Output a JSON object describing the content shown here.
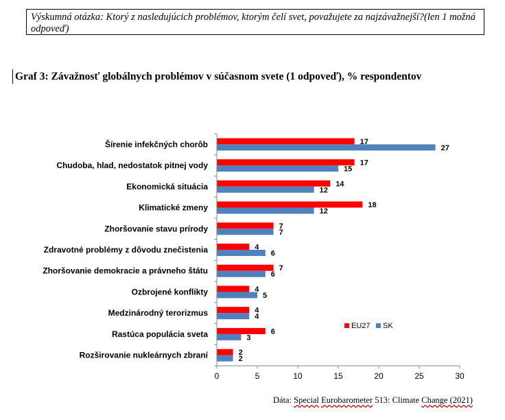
{
  "question": {
    "text": "Výskumná otázka: Ktorý z nasledujúcich problémov, ktorým čelí svet, považujete za najzávažnejší?(len 1 možná odpoveď)"
  },
  "chart_data": {
    "type": "bar",
    "orientation": "horizontal",
    "title": "Graf 3: Závažnosť globálnych problémov v súčasnom svete (1 odpoveď), % respondentov",
    "categories": [
      "Šírenie infekčných chorôb",
      "Chudoba, hlad, nedostatok pitnej vody",
      "Ekonomická situácia",
      "Klimatické zmeny",
      "Zhoršovanie stavu prírody",
      "Zdravotné problémy z dôvodu znečistenia",
      "Zhoršovanie demokracie a právneho štátu",
      "Ozbrojené konflikty",
      "Medzinárodný terorizmus",
      "Rastúca populácia sveta",
      "Rozširovanie nukleárnych zbraní"
    ],
    "series": [
      {
        "name": "EU27",
        "color": "#ff0000",
        "values": [
          17,
          17,
          14,
          18,
          7,
          4,
          7,
          4,
          4,
          6,
          2
        ]
      },
      {
        "name": "SK",
        "color": "#4f81bd",
        "values": [
          27,
          15,
          12,
          12,
          7,
          6,
          6,
          5,
          4,
          3,
          2
        ]
      }
    ],
    "xlim": [
      0,
      30
    ],
    "xticks": [
      0,
      5,
      10,
      15,
      20,
      25,
      30
    ],
    "grid": false,
    "legend_position": "bottom-right"
  },
  "source": {
    "prefix": "Dáta:",
    "name": "Special",
    "middle": "Eurobarometer",
    "number": "513: Climate",
    "suffix": "Change (2021)"
  }
}
